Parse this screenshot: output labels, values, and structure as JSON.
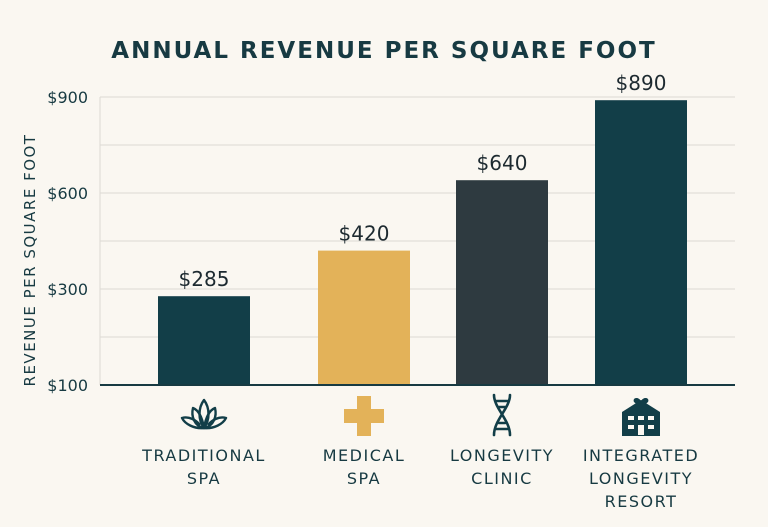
{
  "chart_data": {
    "type": "bar",
    "title": "ANNUAL REVENUE PER SQUARE FOOT",
    "xlabel": "",
    "ylabel": "REVENUE PER SQUARE FOOT",
    "categories": [
      "TRADITIONAL SPA",
      "MEDICAL SPA",
      "LONGEVITY CLINIC",
      "INTEGRATED LONGEVITY RESORT"
    ],
    "category_lines": [
      [
        "TRADITIONAL",
        "SPA"
      ],
      [
        "MEDICAL",
        "SPA"
      ],
      [
        "LONGEVITY",
        "CLINIC"
      ],
      [
        "INTEGRATED",
        "LONGEVITY",
        "RESORT"
      ]
    ],
    "values": [
      285,
      420,
      640,
      890
    ],
    "data_labels": [
      "$285",
      "$420",
      "$640",
      "$890"
    ],
    "bar_colors": [
      "#123e48",
      "#e3b259",
      "#2e3a40",
      "#123e48"
    ],
    "category_icons": [
      "lotus-icon",
      "medical-cross-icon",
      "dna-icon",
      "building-heart-icon"
    ],
    "y_ticks": [
      100,
      300,
      600,
      900
    ],
    "y_tick_labels": [
      "$100",
      "$300",
      "$600",
      "$900"
    ],
    "ylim": [
      100,
      900
    ],
    "grid": true,
    "legend": "none"
  }
}
